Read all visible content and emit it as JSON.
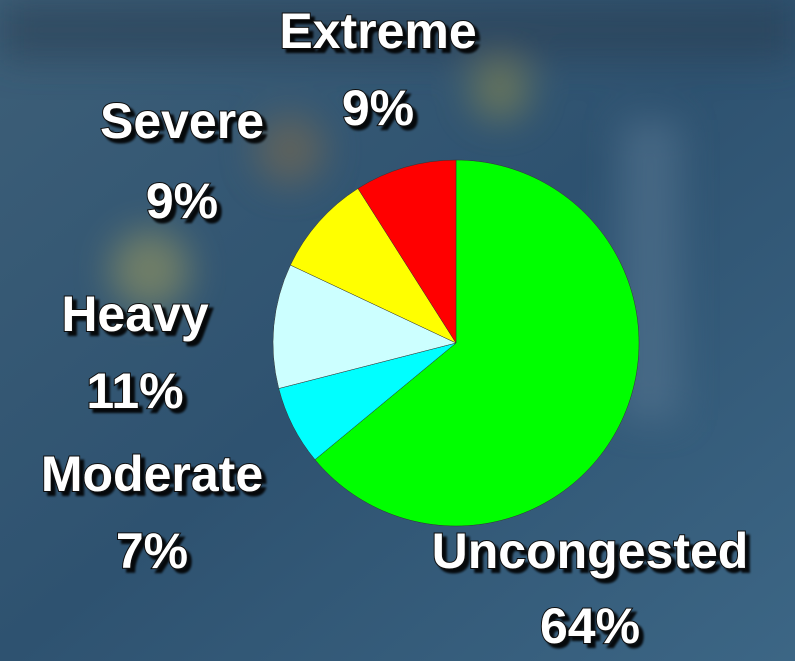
{
  "chart_data": {
    "type": "pie",
    "categories": [
      "Uncongested",
      "Moderate",
      "Heavy",
      "Severe",
      "Extreme"
    ],
    "values": [
      64,
      7,
      11,
      9,
      9
    ],
    "value_labels": [
      "64%",
      "7%",
      "11%",
      "9%",
      "9%"
    ],
    "colors": [
      "#00ff00",
      "#00ffff",
      "#ccffff",
      "#ffff00",
      "#ff0000"
    ]
  }
}
